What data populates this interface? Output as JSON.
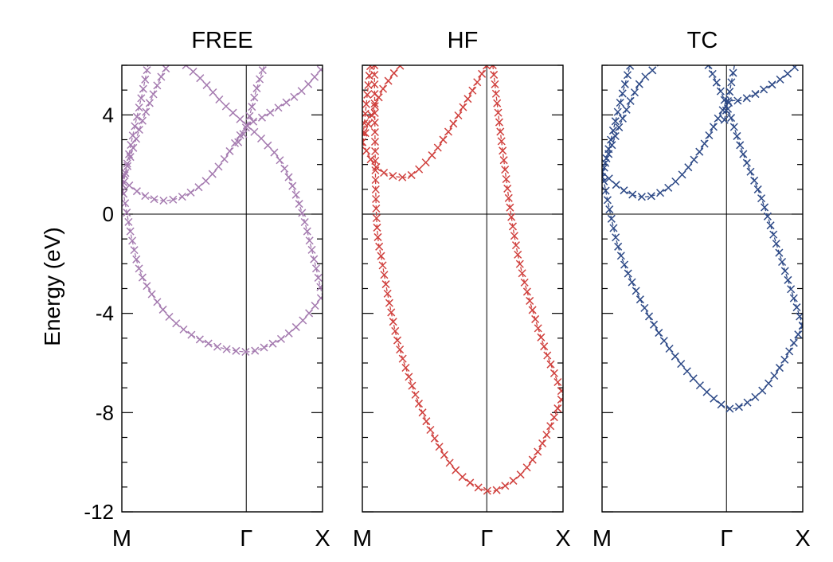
{
  "figure": {
    "ylabel": "Energy (eV)"
  },
  "chart_data": [
    {
      "type": "line",
      "title": "FREE",
      "color": "#a57bb0",
      "ylim": [
        -12,
        6
      ],
      "yticks": [
        "4",
        "0",
        "-4",
        "-8",
        "-12"
      ],
      "xticks": [
        {
          "pos": 0,
          "label": "M"
        },
        {
          "pos": 0.62,
          "label": "Γ"
        },
        {
          "pos": 1,
          "label": "X"
        }
      ],
      "series": [
        {
          "values": [
            [
              0.0,
              1.4
            ],
            [
              0.1,
              0.8
            ],
            [
              0.2,
              0.55
            ],
            [
              0.3,
              0.7
            ],
            [
              0.4,
              1.2
            ],
            [
              0.5,
              2.1
            ],
            [
              0.62,
              3.5
            ],
            [
              0.7,
              3.9
            ],
            [
              0.8,
              4.4
            ],
            [
              0.9,
              5.0
            ],
            [
              1.0,
              5.9
            ]
          ]
        },
        {
          "values": [
            [
              0.0,
              1.2
            ],
            [
              0.05,
              -1.0
            ],
            [
              0.1,
              -2.5
            ],
            [
              0.2,
              -3.8
            ],
            [
              0.3,
              -4.6
            ],
            [
              0.4,
              -5.1
            ],
            [
              0.5,
              -5.4
            ],
            [
              0.62,
              -5.55
            ],
            [
              0.7,
              -5.4
            ],
            [
              0.8,
              -5.0
            ],
            [
              0.9,
              -4.3
            ],
            [
              1.0,
              -3.3
            ]
          ]
        },
        {
          "values": [
            [
              0.0,
              1.2
            ],
            [
              0.05,
              2.5
            ],
            [
              0.1,
              3.7
            ],
            [
              0.15,
              4.7
            ],
            [
              0.2,
              5.6
            ],
            [
              0.23,
              6.0
            ]
          ]
        },
        {
          "values": [
            [
              0.0,
              0.9
            ],
            [
              0.05,
              3.0
            ],
            [
              0.1,
              4.8
            ],
            [
              0.13,
              6.0
            ]
          ]
        },
        {
          "values": [
            [
              0.32,
              6.0
            ],
            [
              0.4,
              5.4
            ],
            [
              0.5,
              4.5
            ],
            [
              0.62,
              3.6
            ],
            [
              0.7,
              3.0
            ],
            [
              0.8,
              2.0
            ],
            [
              0.9,
              0.0
            ],
            [
              1.0,
              -3.3
            ]
          ]
        },
        {
          "values": [
            [
              0.58,
              2.9
            ],
            [
              0.62,
              3.5
            ],
            [
              0.67,
              5.0
            ],
            [
              0.71,
              6.0
            ]
          ]
        }
      ]
    },
    {
      "type": "line",
      "title": "HF",
      "color": "#d0413e",
      "ylim": [
        -12,
        6
      ],
      "yticks": [
        "4",
        "0",
        "-4",
        "-8",
        "-12"
      ],
      "xticks": [
        {
          "pos": 0,
          "label": "M"
        },
        {
          "pos": 0.62,
          "label": "Γ"
        },
        {
          "pos": 1,
          "label": "X"
        }
      ],
      "series": [
        {
          "values": [
            [
              0.0,
              2.9
            ],
            [
              0.05,
              2.1
            ],
            [
              0.1,
              1.7
            ],
            [
              0.18,
              1.5
            ],
            [
              0.25,
              1.6
            ],
            [
              0.35,
              2.4
            ],
            [
              0.45,
              3.6
            ],
            [
              0.55,
              5.0
            ],
            [
              0.62,
              6.0
            ]
          ]
        },
        {
          "values": [
            [
              0.0,
              2.9
            ],
            [
              0.05,
              4.1
            ],
            [
              0.1,
              5.0
            ],
            [
              0.15,
              5.6
            ],
            [
              0.19,
              6.0
            ]
          ]
        },
        {
          "values": [
            [
              0.0,
              2.9
            ],
            [
              0.04,
              6.0
            ]
          ]
        },
        {
          "values": [
            [
              0.06,
              6.0
            ],
            [
              0.07,
              0.0
            ],
            [
              0.1,
              -2.0
            ],
            [
              0.15,
              -4.2
            ],
            [
              0.2,
              -5.8
            ],
            [
              0.3,
              -8.0
            ],
            [
              0.4,
              -9.6
            ],
            [
              0.5,
              -10.6
            ],
            [
              0.62,
              -11.15
            ],
            [
              0.7,
              -11.0
            ],
            [
              0.8,
              -10.4
            ],
            [
              0.9,
              -9.2
            ],
            [
              1.0,
              -7.3
            ]
          ]
        },
        {
          "values": [
            [
              0.65,
              6.0
            ],
            [
              0.7,
              2.5
            ],
            [
              0.75,
              -0.5
            ],
            [
              0.8,
              -2.5
            ],
            [
              0.9,
              -5.2
            ],
            [
              1.0,
              -7.3
            ]
          ]
        }
      ]
    },
    {
      "type": "line",
      "title": "TC",
      "color": "#2e4a87",
      "ylim": [
        -12,
        6
      ],
      "yticks": [
        "4",
        "0",
        "-4",
        "-8",
        "-12"
      ],
      "xticks": [
        {
          "pos": 0,
          "label": "M"
        },
        {
          "pos": 0.62,
          "label": "Γ"
        },
        {
          "pos": 1,
          "label": "X"
        }
      ],
      "series": [
        {
          "values": [
            [
              0.0,
              1.7
            ],
            [
              0.1,
              1.0
            ],
            [
              0.2,
              0.7
            ],
            [
              0.3,
              0.9
            ],
            [
              0.4,
              1.6
            ],
            [
              0.5,
              2.7
            ],
            [
              0.62,
              4.4
            ],
            [
              0.7,
              4.6
            ],
            [
              0.8,
              5.0
            ],
            [
              0.9,
              5.5
            ],
            [
              0.97,
              6.0
            ]
          ]
        },
        {
          "values": [
            [
              0.0,
              1.7
            ],
            [
              0.05,
              -0.3
            ],
            [
              0.1,
              -1.8
            ],
            [
              0.2,
              -3.6
            ],
            [
              0.3,
              -5.0
            ],
            [
              0.4,
              -6.1
            ],
            [
              0.5,
              -7.0
            ],
            [
              0.62,
              -7.8
            ],
            [
              0.7,
              -7.7
            ],
            [
              0.8,
              -7.1
            ],
            [
              0.9,
              -6.0
            ],
            [
              1.0,
              -4.5
            ]
          ]
        },
        {
          "values": [
            [
              0.0,
              1.7
            ],
            [
              0.05,
              2.8
            ],
            [
              0.1,
              3.8
            ],
            [
              0.15,
              4.7
            ],
            [
              0.2,
              5.4
            ],
            [
              0.28,
              6.0
            ]
          ]
        },
        {
          "values": [
            [
              0.0,
              1.5
            ],
            [
              0.05,
              3.2
            ],
            [
              0.1,
              4.8
            ],
            [
              0.14,
              6.0
            ]
          ]
        },
        {
          "values": [
            [
              0.53,
              6.0
            ],
            [
              0.62,
              4.4
            ],
            [
              0.7,
              2.5
            ],
            [
              0.8,
              0.5
            ],
            [
              0.9,
              -2.0
            ],
            [
              1.0,
              -4.5
            ]
          ]
        },
        {
          "values": [
            [
              0.61,
              3.8
            ],
            [
              0.66,
              6.0
            ]
          ]
        }
      ]
    }
  ]
}
